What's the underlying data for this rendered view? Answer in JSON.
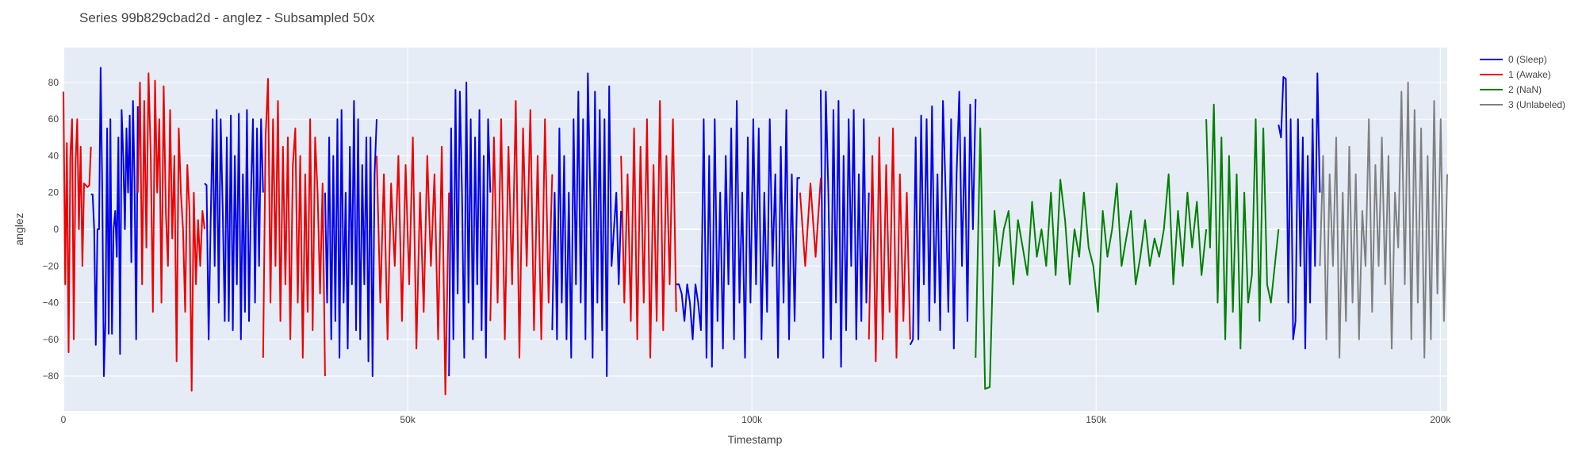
{
  "chart_data": {
    "type": "line",
    "title": "Series 99b829cbad2d - anglez - Subsampled 50x",
    "xlabel": "Timestamp",
    "ylabel": "anglez",
    "xlim": [
      0,
      201000
    ],
    "ylim": [
      -99,
      99
    ],
    "x_ticks": [
      {
        "value": 0,
        "label": "0"
      },
      {
        "value": 50000,
        "label": "50k"
      },
      {
        "value": 100000,
        "label": "100k"
      },
      {
        "value": 150000,
        "label": "150k"
      },
      {
        "value": 200000,
        "label": "200k"
      }
    ],
    "y_ticks": [
      {
        "value": -80,
        "label": "−80"
      },
      {
        "value": -60,
        "label": "−60"
      },
      {
        "value": -40,
        "label": "−40"
      },
      {
        "value": -20,
        "label": "−20"
      },
      {
        "value": 0,
        "label": "0"
      },
      {
        "value": 20,
        "label": "20"
      },
      {
        "value": 40,
        "label": "40"
      },
      {
        "value": 60,
        "label": "60"
      },
      {
        "value": 80,
        "label": "80"
      }
    ],
    "grid": true,
    "legend_position": "top-right outside",
    "plot_background": "#e5ecf6",
    "series": [
      {
        "name": "0 (Sleep)",
        "color": "#0000ee",
        "segments": [
          {
            "x_range": [
              4000,
              10800
            ],
            "values": [
              19,
              19,
              0,
              -63,
              0,
              0,
              88,
              20,
              -80,
              -50,
              55,
              -57,
              60,
              -57,
              0,
              10,
              -15,
              50,
              -68,
              65,
              40,
              0,
              55,
              20,
              62,
              -18,
              70,
              25,
              -60,
              67
            ]
          },
          {
            "x_range": [
              20500,
              29000
            ],
            "values": [
              25,
              24,
              -60,
              3,
              60,
              -20,
              65,
              -40,
              60,
              10,
              -50,
              50,
              -50,
              62,
              -55,
              40,
              -30,
              63,
              -60,
              30,
              -45,
              65,
              -50,
              20,
              60,
              -40,
              55,
              -20,
              60,
              20
            ]
          },
          {
            "x_range": [
              38000,
              45500
            ],
            "values": [
              20,
              -40,
              50,
              -60,
              40,
              -50,
              60,
              -70,
              65,
              -40,
              20,
              -65,
              45,
              -30,
              70,
              -55,
              60,
              -60,
              35,
              -30,
              50,
              -72,
              50,
              -80,
              30,
              60
            ]
          },
          {
            "x_range": [
              56000,
              62000
            ],
            "values": [
              -80,
              55,
              -60,
              76,
              -35,
              75,
              20,
              -70,
              80,
              -40,
              60,
              -60,
              50,
              -30,
              65,
              -55,
              40,
              -70,
              60,
              20
            ]
          },
          {
            "x_range": [
              71000,
              81000
            ],
            "values": [
              -55,
              20,
              -60,
              55,
              -40,
              40,
              -60,
              20,
              -70,
              60,
              -30,
              75,
              -40,
              60,
              -60,
              85,
              20,
              -70,
              75,
              -40,
              65,
              -55,
              60,
              -80,
              78,
              -20,
              0,
              20,
              -30,
              10
            ]
          },
          {
            "x_range": [
              89000,
              107000
            ],
            "values": [
              -30,
              -30,
              -35,
              -50,
              -30,
              -40,
              -60,
              -30,
              -40,
              -55,
              60,
              -70,
              40,
              -75,
              60,
              -50,
              20,
              -65,
              40,
              -30,
              55,
              -60,
              70,
              -40,
              20,
              -70,
              50,
              -40,
              60,
              -30,
              55,
              -60,
              20,
              -45,
              60,
              -20,
              30,
              -70,
              45,
              -40,
              65,
              -60,
              30,
              -50,
              28,
              28
            ]
          },
          {
            "x_range": [
              110000,
              117000
            ],
            "values": [
              76,
              -70,
              75,
              20,
              -60,
              65,
              -40,
              70,
              -75,
              40,
              -55,
              60,
              -20,
              65,
              -60,
              30,
              -50,
              60,
              -40,
              20
            ]
          },
          {
            "x_range": [
              123000,
              132500
            ],
            "values": [
              -63,
              -60,
              50,
              -60,
              62,
              -30,
              60,
              -50,
              67,
              -40,
              30,
              -55,
              70,
              20,
              -45,
              60,
              -65,
              30,
              75,
              -20,
              50,
              -50,
              68,
              0,
              71
            ]
          },
          {
            "x_range": [
              176500,
              182500
            ],
            "values": [
              57,
              50,
              83,
              82,
              -40,
              60,
              -60,
              -50,
              60,
              -20,
              50,
              -65,
              40,
              -40,
              60,
              -20,
              85,
              20
            ]
          }
        ]
      },
      {
        "name": "1 (Awake)",
        "color": "#ee0000",
        "segments": [
          {
            "x_range": [
              0,
              4000
            ],
            "values": [
              75,
              -30,
              47,
              -67,
              40,
              60,
              -60,
              35,
              60,
              0,
              45,
              -20,
              25,
              24,
              23,
              24,
              45
            ]
          },
          {
            "x_range": [
              10800,
              20500
            ],
            "values": [
              20,
              80,
              -30,
              70,
              -10,
              85,
              40,
              -45,
              81,
              20,
              60,
              -40,
              78,
              10,
              -20,
              65,
              -5,
              40,
              -72,
              55,
              20,
              0,
              -45,
              35,
              10,
              -88,
              20,
              -30,
              5,
              -20,
              10,
              0
            ]
          },
          {
            "x_range": [
              29000,
              38000
            ],
            "values": [
              -70,
              50,
              82,
              -40,
              60,
              -20,
              70,
              -50,
              45,
              -30,
              50,
              -60,
              35,
              55,
              -40,
              40,
              -70,
              30,
              -45,
              60,
              -55,
              50,
              20,
              -35,
              25,
              -80
            ]
          },
          {
            "x_range": [
              45500,
              56000
            ],
            "values": [
              40,
              -40,
              30,
              -60,
              25,
              -20,
              40,
              -50,
              35,
              -30,
              50,
              -65,
              20,
              -45,
              40,
              -20,
              30,
              -60,
              45,
              -90,
              20
            ]
          },
          {
            "x_range": [
              62000,
              71000
            ],
            "values": [
              -50,
              50,
              -40,
              60,
              -60,
              45,
              -30,
              70,
              -70,
              55,
              -20,
              65,
              -55,
              40,
              -60,
              60,
              -40,
              30
            ]
          },
          {
            "x_range": [
              81000,
              89000
            ],
            "values": [
              40,
              -40,
              30,
              -50,
              55,
              -60,
              45,
              -40,
              60,
              -70,
              35,
              -50,
              70,
              -55,
              40,
              -30,
              60,
              -45
            ]
          },
          {
            "x_range": [
              107000,
              110000
            ],
            "values": [
              20,
              -20,
              25,
              -15,
              28
            ]
          },
          {
            "x_range": [
              117000,
              123000
            ],
            "values": [
              -60,
              40,
              -72,
              50,
              -60,
              35,
              -45,
              55,
              -70,
              30,
              -50,
              20,
              -60
            ]
          }
        ]
      },
      {
        "name": "2 (NaN)",
        "color": "#008000",
        "segments": [
          {
            "x_range": [
              132500,
              166000
            ],
            "values": [
              -70,
              55,
              -87,
              -86,
              10,
              -20,
              0,
              10,
              -30,
              5,
              -10,
              -25,
              15,
              -15,
              0,
              -20,
              20,
              -25,
              27,
              5,
              -30,
              0,
              -15,
              20,
              -10,
              -20,
              -45,
              10,
              -15,
              0,
              25,
              -20,
              -5,
              10,
              -30,
              -15,
              5,
              -20,
              -5,
              -15,
              0,
              30,
              -30,
              10,
              -20,
              20,
              -10,
              15,
              -25,
              0
            ]
          },
          {
            "x_range": [
              166000,
              176500
            ],
            "values": [
              60,
              -10,
              68,
              -40,
              50,
              -60,
              40,
              -45,
              30,
              -65,
              20,
              -40,
              -25,
              60,
              -50,
              55,
              -30,
              -40,
              -20,
              0
            ]
          }
        ]
      },
      {
        "name": "3 (Unlabeled)",
        "color": "#808080",
        "segments": [
          {
            "x_range": [
              182500,
              201000
            ],
            "values": [
              -20,
              40,
              -60,
              30,
              -20,
              50,
              -70,
              20,
              -50,
              45,
              -40,
              30,
              -60,
              10,
              -20,
              60,
              -45,
              35,
              -20,
              50,
              -30,
              40,
              -65,
              20,
              -10,
              75,
              -30,
              80,
              -60,
              65,
              -40,
              55,
              -70,
              40,
              -60,
              70,
              -35,
              60,
              -50,
              30
            ]
          }
        ]
      }
    ]
  }
}
